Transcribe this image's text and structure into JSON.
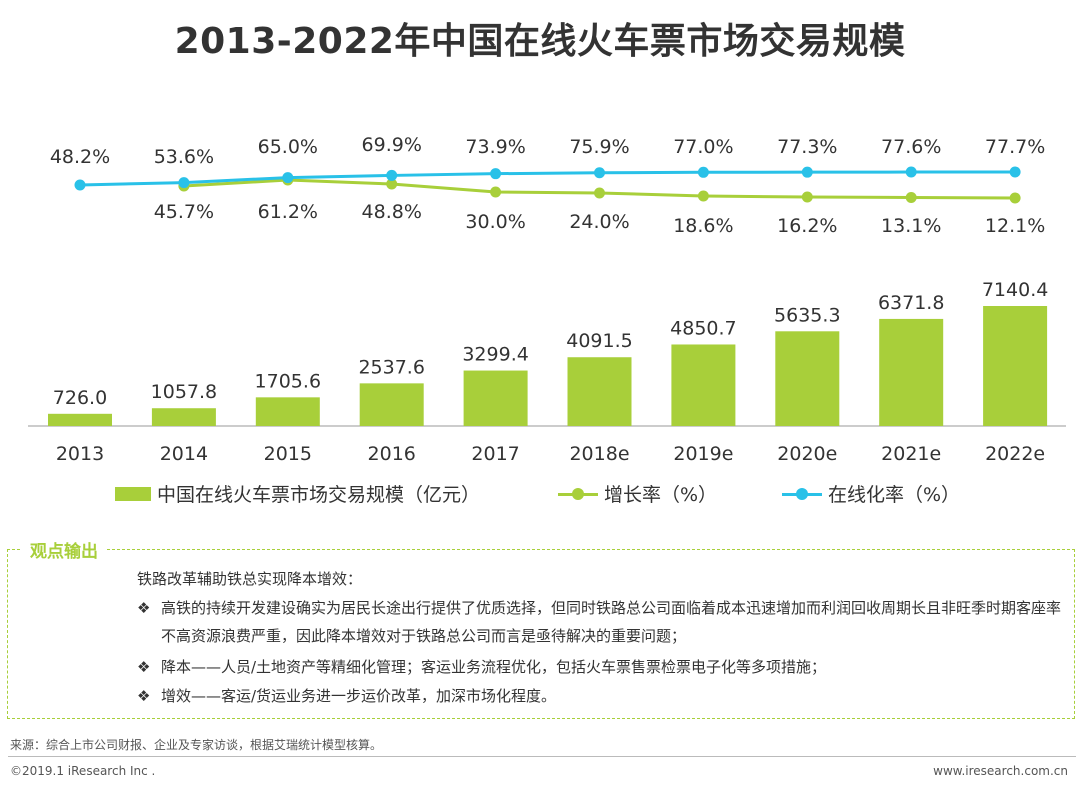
{
  "title": "2013-2022年中国在线火车票市场交易规模",
  "chart_data": {
    "type": "bar+line",
    "categories": [
      "2013",
      "2014",
      "2015",
      "2016",
      "2017",
      "2018e",
      "2019e",
      "2020e",
      "2021e",
      "2022e"
    ],
    "bars": {
      "name": "中国在线火车票市场交易规模（亿元）",
      "values": [
        726.0,
        1057.8,
        1705.6,
        2537.6,
        3299.4,
        4091.5,
        4850.7,
        5635.3,
        6371.8,
        7140.4
      ],
      "labels": [
        "726.0",
        "1057.8",
        "1705.6",
        "2537.6",
        "3299.4",
        "4091.5",
        "4850.7",
        "5635.3",
        "6371.8",
        "7140.4"
      ],
      "color": "#a8cf3a"
    },
    "lines": [
      {
        "name": "增长率（%）",
        "values": [
          null,
          45.7,
          61.2,
          48.8,
          30.0,
          24.0,
          18.6,
          16.2,
          13.1,
          12.1
        ],
        "labels": [
          "",
          "45.7%",
          "61.2%",
          "48.8%",
          "30.0%",
          "24.0%",
          "18.6%",
          "16.2%",
          "13.1%",
          "12.1%"
        ],
        "color": "#a8cf3a"
      },
      {
        "name": "在线化率（%）",
        "values": [
          48.2,
          53.6,
          65.0,
          69.9,
          73.9,
          75.9,
          77.0,
          77.3,
          77.6,
          77.7
        ],
        "labels": [
          "48.2%",
          "53.6%",
          "65.0%",
          "69.9%",
          "73.9%",
          "75.9%",
          "77.0%",
          "77.3%",
          "77.6%",
          "77.7%"
        ],
        "color": "#29c1e8"
      }
    ],
    "legend_position": "bottom",
    "grid": false
  },
  "legend": {
    "bar": "中国在线火车票市场交易规模（亿元）",
    "growth": "增长率（%）",
    "online": "在线化率（%）"
  },
  "observation": {
    "label": "观点输出",
    "intro": "铁路改革辅助铁总实现降本增效：",
    "bullet_symbol": "❖",
    "bullets": [
      "高铁的持续开发建设确实为居民长途出行提供了优质选择，但同时铁路总公司面临着成本迅速增加而利润回收周期长且非旺季时期客座率不高资源浪费严重，因此降本增效对于铁路总公司而言是亟待解决的重要问题；",
      "降本——人员/土地资产等精细化管理；客运业务流程优化，包括火车票售票检票电子化等多项措施；",
      "增效——客运/货运业务进一步运价改革，加深市场化程度。"
    ]
  },
  "source": "来源：综合上市公司财报、企业及专家访谈，根据艾瑞统计模型核算。",
  "copyright": "©2019.1 iResearch Inc .",
  "website": "www.iresearch.com.cn"
}
